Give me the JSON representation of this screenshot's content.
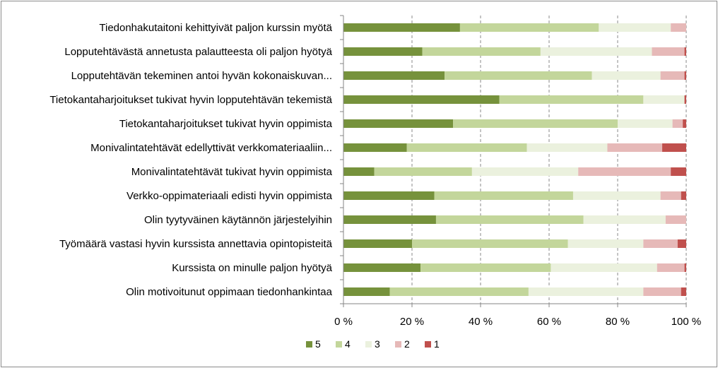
{
  "chart_data": {
    "type": "bar",
    "orientation": "horizontal",
    "stacked": "percent",
    "title": "",
    "xlabel": "",
    "ylabel": "",
    "xlim": [
      0,
      100
    ],
    "x_ticks": [
      "0 %",
      "20 %",
      "40 %",
      "60 %",
      "80 %",
      "100 %"
    ],
    "grid": true,
    "legend_position": "bottom",
    "categories": [
      "Tiedonhakutaitoni kehittyivät paljon kurssin myötä",
      "Lopputehtävästä annetusta palautteesta oli paljon hyötyä",
      "Lopputehtävän tekeminen antoi hyvän kokonaiskuvan...",
      "Tietokantaharjoitukset tukivat hyvin lopputehtävän tekemistä",
      "Tietokantaharjoitukset tukivat hyvin oppimista",
      "Monivalintatehtävät edellyttivät verkkomateriaaliin...",
      "Monivalintatehtävät tukivat hyvin oppimista",
      "Verkko-oppimateriaali edisti hyvin oppimista",
      "Olin tyytyväinen käytännön järjestelyihin",
      "Työmäärä vastasi hyvin kurssista annettavia opintopisteitä",
      "Kurssista on minulle paljon hyötyä",
      "Olin motivoitunut oppimaan tiedonhankintaa"
    ],
    "series": [
      {
        "name": "5",
        "color": "#76923c",
        "values": [
          34,
          23,
          29.5,
          45.5,
          32,
          18.5,
          9,
          26.5,
          27,
          20,
          22.5,
          13.5
        ]
      },
      {
        "name": "4",
        "color": "#c3d69b",
        "values": [
          40.5,
          34.5,
          43,
          42,
          48,
          35,
          28.5,
          40.5,
          43,
          45.5,
          38,
          40.5
        ]
      },
      {
        "name": "3",
        "color": "#ebf1de",
        "values": [
          21,
          32.5,
          20,
          12,
          16,
          23.5,
          31,
          25.5,
          24,
          22,
          31,
          33.5
        ]
      },
      {
        "name": "2",
        "color": "#e6b9b8",
        "values": [
          4.5,
          9.5,
          7,
          0,
          3,
          16,
          27,
          6,
          6,
          10,
          8,
          11
        ]
      },
      {
        "name": "1",
        "color": "#c0504d",
        "values": [
          0,
          0.5,
          0.5,
          0.5,
          1,
          7,
          4.5,
          1.5,
          0,
          2.5,
          0.5,
          1.5
        ]
      }
    ]
  }
}
